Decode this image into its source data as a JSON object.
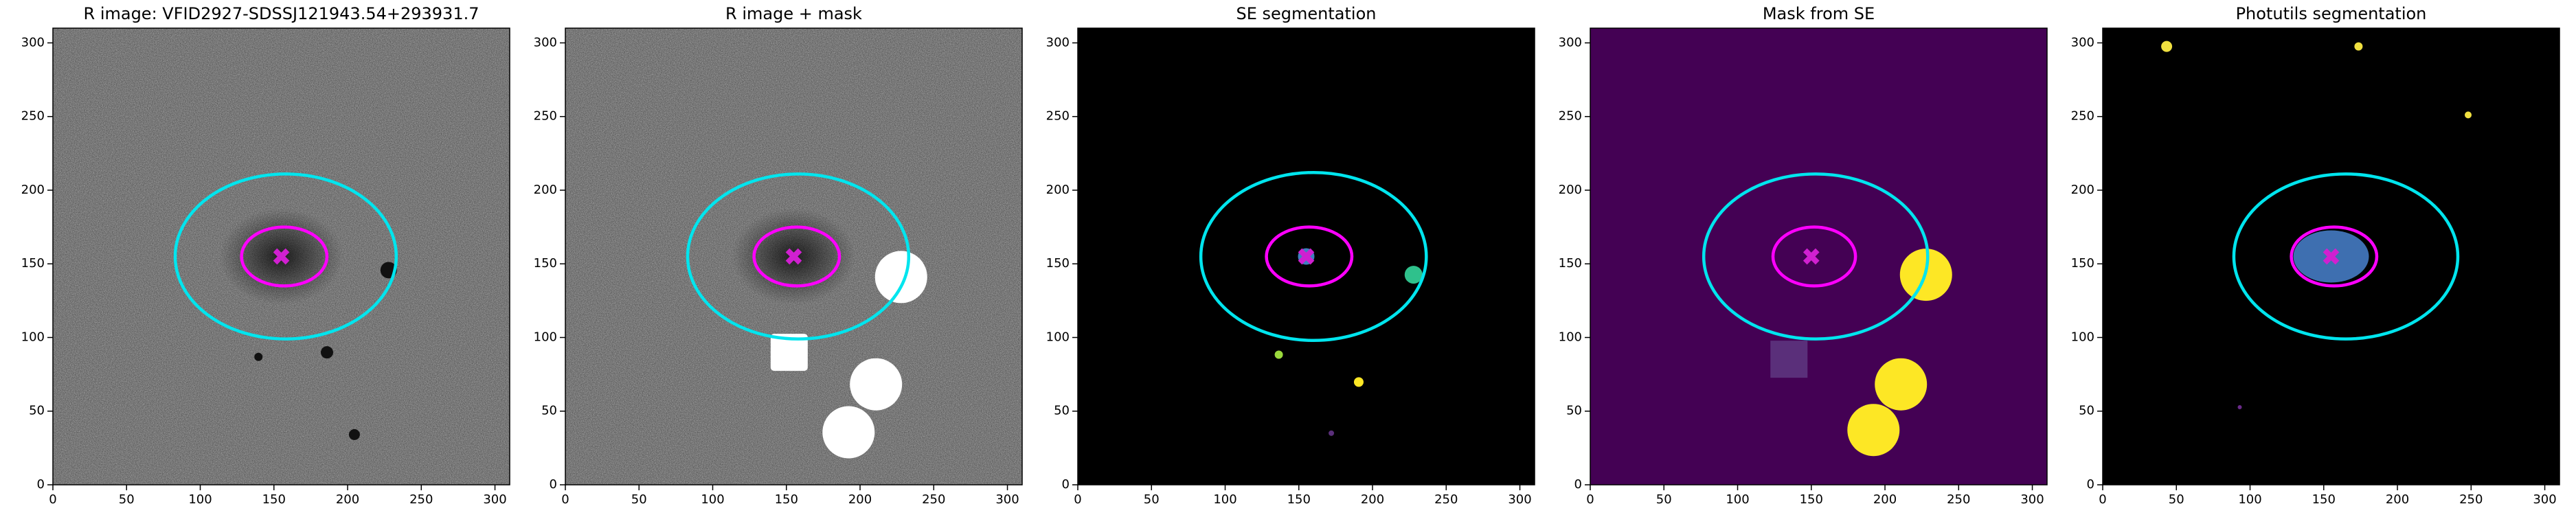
{
  "chart_data": [
    {
      "type": "image",
      "title": "R image: VFID2927-SDSSJ121943.54+293931.7",
      "background": "noise",
      "xlim": [
        0,
        310
      ],
      "ylim": [
        0,
        310
      ],
      "xticks": [
        0,
        50,
        100,
        150,
        200,
        250,
        300
      ],
      "yticks": [
        0,
        50,
        100,
        150,
        200,
        250,
        300
      ],
      "ellipses": [
        {
          "center": [
            158,
            155
          ],
          "width": 150,
          "height": 112,
          "color": "#00e5ee"
        },
        {
          "center": [
            157,
            155
          ],
          "width": 58,
          "height": 40,
          "color": "#ff00ff"
        }
      ],
      "markers": [
        {
          "x": 155,
          "y": 155,
          "color": "#d020d0"
        }
      ]
    },
    {
      "type": "image",
      "title": "R image + mask",
      "background": "noise-mask",
      "xlim": [
        0,
        310
      ],
      "ylim": [
        0,
        310
      ],
      "xticks": [
        0,
        50,
        100,
        150,
        200,
        250,
        300
      ],
      "yticks": [
        0,
        50,
        100,
        150,
        200,
        250,
        300
      ],
      "ellipses": [
        {
          "center": [
            158,
            155
          ],
          "width": 150,
          "height": 112,
          "color": "#00e5ee"
        },
        {
          "center": [
            157,
            155
          ],
          "width": 58,
          "height": 40,
          "color": "#ff00ff"
        }
      ],
      "markers": [
        {
          "x": 155,
          "y": 155,
          "color": "#d020d0"
        }
      ]
    },
    {
      "type": "image",
      "title": "SE segmentation",
      "background": "se",
      "xlim": [
        0,
        310
      ],
      "ylim": [
        0,
        310
      ],
      "xticks": [
        0,
        50,
        100,
        150,
        200,
        250,
        300
      ],
      "yticks": [
        0,
        50,
        100,
        150,
        200,
        250,
        300
      ],
      "ellipses": [
        {
          "center": [
            160,
            155
          ],
          "width": 153,
          "height": 114,
          "color": "#00e5ee"
        },
        {
          "center": [
            157,
            155
          ],
          "width": 58,
          "height": 40,
          "color": "#ff00ff"
        }
      ],
      "markers": [
        {
          "x": 155,
          "y": 155,
          "color": "#d020d0"
        }
      ]
    },
    {
      "type": "image",
      "title": "Mask from SE",
      "background": "mask",
      "xlim": [
        0,
        310
      ],
      "ylim": [
        0,
        310
      ],
      "xticks": [
        0,
        50,
        100,
        150,
        200,
        250,
        300
      ],
      "yticks": [
        0,
        50,
        100,
        150,
        200,
        250,
        300
      ],
      "ellipses": [
        {
          "center": [
            153,
            155
          ],
          "width": 152,
          "height": 112,
          "color": "#00e5ee"
        },
        {
          "center": [
            152,
            155
          ],
          "width": 56,
          "height": 40,
          "color": "#ff00ff"
        }
      ],
      "markers": [
        {
          "x": 150,
          "y": 155,
          "color": "#d020d0"
        }
      ]
    },
    {
      "type": "image",
      "title": "Photutils segmentation",
      "background": "phot",
      "xlim": [
        0,
        310
      ],
      "ylim": [
        0,
        310
      ],
      "xticks": [
        0,
        50,
        100,
        150,
        200,
        250,
        300
      ],
      "yticks": [
        0,
        50,
        100,
        150,
        200,
        250,
        300
      ],
      "ellipses": [
        {
          "center": [
            165,
            155
          ],
          "width": 152,
          "height": 112,
          "color": "#00e5ee"
        },
        {
          "center": [
            157,
            155
          ],
          "width": 58,
          "height": 40,
          "color": "#ff00ff"
        }
      ],
      "markers": [
        {
          "x": 155,
          "y": 155,
          "color": "#d020d0"
        }
      ]
    }
  ]
}
